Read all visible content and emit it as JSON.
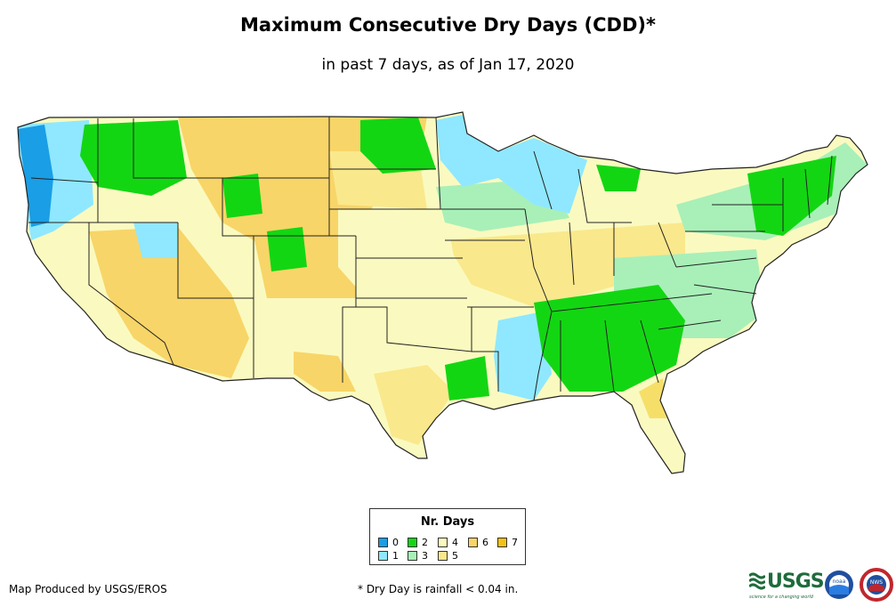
{
  "title": "Maximum Consecutive Dry Days (CDD)*",
  "subtitle": "in past 7 days, as of Jan 17, 2020",
  "legend": {
    "title": "Nr. Days",
    "items": [
      {
        "label": "0",
        "color": "#1a9ee6"
      },
      {
        "label": "1",
        "color": "#8fe8ff"
      },
      {
        "label": "2",
        "color": "#13d613"
      },
      {
        "label": "3",
        "color": "#a8f0b8"
      },
      {
        "label": "4",
        "color": "#fafac0"
      },
      {
        "label": "5",
        "color": "#fae88c"
      },
      {
        "label": "6",
        "color": "#f8d568"
      },
      {
        "label": "7",
        "color": "#f2c312"
      }
    ]
  },
  "credit": "Map Produced by USGS/EROS",
  "footnote": "* Dry Day is rainfall < 0.04 in.",
  "logos": {
    "usgs": "USGS",
    "usgs_tagline": "science for a changing world",
    "noaa": "noaa",
    "nws": "NWS"
  }
}
